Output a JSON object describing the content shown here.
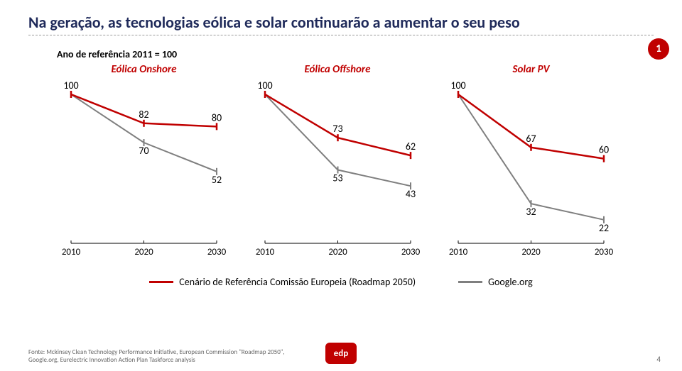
{
  "title": "Na geração, as tecnologias eólica e solar continuarão a aumentar o seu peso",
  "subtitle": "Ano de referência 2011 = 100",
  "badge": "1",
  "chart_common": {
    "x_ticks": [
      "2010",
      "2020",
      "2030"
    ],
    "line_width_red": 2.5,
    "line_width_grey": 2,
    "red_color": "#c00000",
    "grey_color": "#7f7f7f",
    "tick_color": "#000"
  },
  "charts": [
    {
      "title": "Eólica Onshore",
      "series": [
        {
          "color": "#c00000",
          "values": [
            100,
            82,
            80
          ]
        },
        {
          "color": "#7f7f7f",
          "values": [
            100,
            70,
            52
          ]
        }
      ]
    },
    {
      "title": "Eólica Offshore",
      "series": [
        {
          "color": "#c00000",
          "values": [
            100,
            73,
            62
          ]
        },
        {
          "color": "#7f7f7f",
          "values": [
            100,
            53,
            43
          ]
        }
      ]
    },
    {
      "title": "Solar PV",
      "series": [
        {
          "color": "#c00000",
          "values": [
            100,
            67,
            60
          ]
        },
        {
          "color": "#7f7f7f",
          "values": [
            100,
            32,
            22
          ]
        }
      ]
    }
  ],
  "y_domain": {
    "min": 10,
    "max": 100
  },
  "legend": [
    {
      "color": "#c00000",
      "label": "Cenário de Referência Comissão Europeia (Roadmap 2050)"
    },
    {
      "color": "#7f7f7f",
      "label": "Google.org"
    }
  ],
  "source_lines": [
    "Fonte: Mckinsey Clean Technology Performance Initiative, European Commission \"Roadmap 2050\",",
    "Google.org, Eurelectric Innovation Action Plan Taskforce analysis"
  ],
  "logo_text": "edp",
  "page_number": "4"
}
